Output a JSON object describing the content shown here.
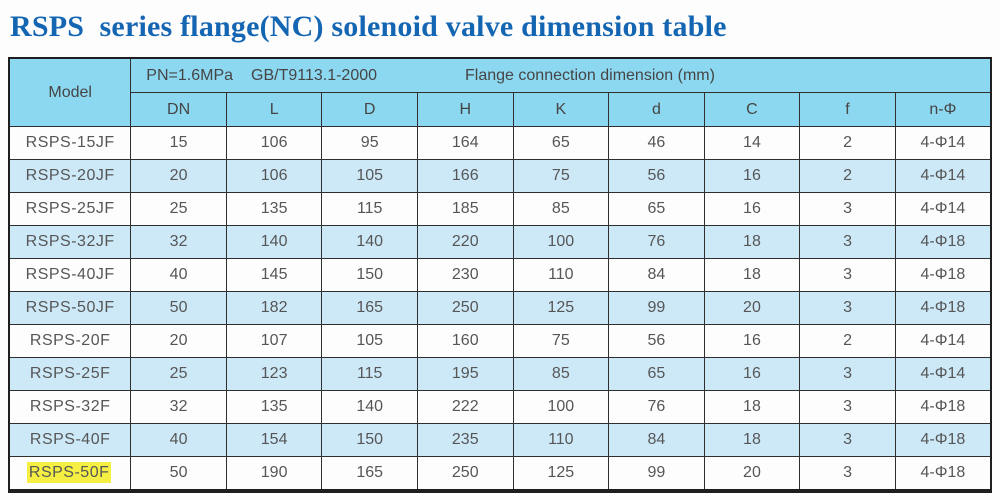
{
  "title": "RSPS  series flange(NC) solenoid valve dimension table",
  "table": {
    "header": {
      "model_label": "Model",
      "spec_pn": "PN=1.6MPa",
      "spec_standard": "GB/T9113.1-2000",
      "spec_desc": "Flange connection dimension (mm)",
      "columns": [
        "DN",
        "L",
        "D",
        "H",
        "K",
        "d",
        "C",
        "f",
        "n-Φ"
      ]
    },
    "rows": [
      {
        "model": "RSPS-15JF",
        "values": [
          "15",
          "106",
          "95",
          "164",
          "65",
          "46",
          "14",
          "2",
          "4-Φ14"
        ]
      },
      {
        "model": "RSPS-20JF",
        "values": [
          "20",
          "106",
          "105",
          "166",
          "75",
          "56",
          "16",
          "2",
          "4-Φ14"
        ]
      },
      {
        "model": "RSPS-25JF",
        "values": [
          "25",
          "135",
          "115",
          "185",
          "85",
          "65",
          "16",
          "3",
          "4-Φ14"
        ]
      },
      {
        "model": "RSPS-32JF",
        "values": [
          "32",
          "140",
          "140",
          "220",
          "100",
          "76",
          "18",
          "3",
          "4-Φ18"
        ]
      },
      {
        "model": "RSPS-40JF",
        "values": [
          "40",
          "145",
          "150",
          "230",
          "110",
          "84",
          "18",
          "3",
          "4-Φ18"
        ]
      },
      {
        "model": "RSPS-50JF",
        "values": [
          "50",
          "182",
          "165",
          "250",
          "125",
          "99",
          "20",
          "3",
          "4-Φ18"
        ]
      },
      {
        "model": "RSPS-20F",
        "values": [
          "20",
          "107",
          "105",
          "160",
          "75",
          "56",
          "16",
          "2",
          "4-Φ14"
        ]
      },
      {
        "model": "RSPS-25F",
        "values": [
          "25",
          "123",
          "115",
          "195",
          "85",
          "65",
          "16",
          "3",
          "4-Φ14"
        ]
      },
      {
        "model": "RSPS-32F",
        "values": [
          "32",
          "135",
          "140",
          "222",
          "100",
          "76",
          "18",
          "3",
          "4-Φ18"
        ]
      },
      {
        "model": "RSPS-40F",
        "values": [
          "40",
          "154",
          "150",
          "235",
          "110",
          "84",
          "18",
          "3",
          "4-Φ18"
        ]
      },
      {
        "model": "RSPS-50F",
        "values": [
          "50",
          "190",
          "165",
          "250",
          "125",
          "99",
          "20",
          "3",
          "4-Φ18"
        ],
        "highlighted": true
      }
    ]
  },
  "colors": {
    "title_blue": "#1566b2",
    "header_bg": "#8dd8f1",
    "row_alt_bg": "#cde9f8",
    "highlight_yellow": "#f5ef43"
  }
}
